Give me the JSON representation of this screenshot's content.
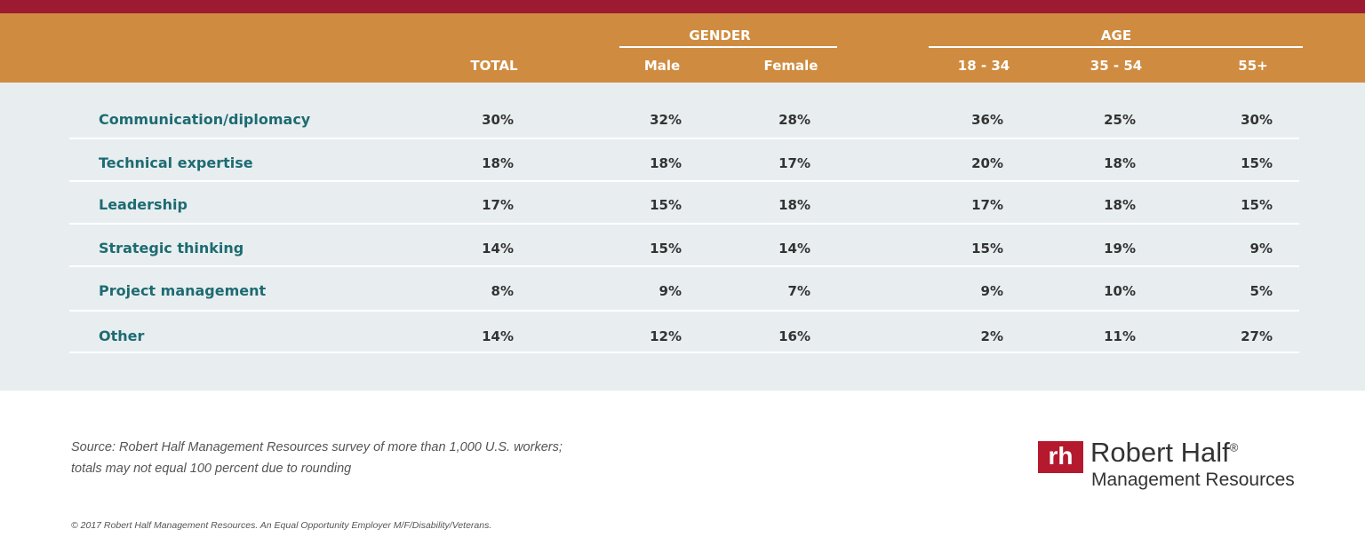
{
  "table": {
    "group_headers": [
      {
        "label": "GENDER"
      },
      {
        "label": "AGE"
      }
    ],
    "columns": [
      "TOTAL",
      "Male",
      "Female",
      "18 - 34",
      "35 - 54",
      "55+"
    ],
    "rows": [
      {
        "label": "Communication/diplomacy",
        "cells": [
          "30%",
          "32%",
          "28%",
          "36%",
          "25%",
          "30%"
        ]
      },
      {
        "label": "Technical expertise",
        "cells": [
          "18%",
          "18%",
          "17%",
          "20%",
          "18%",
          "15%"
        ]
      },
      {
        "label": "Leadership",
        "cells": [
          "17%",
          "15%",
          "18%",
          "17%",
          "18%",
          "15%"
        ]
      },
      {
        "label": "Strategic thinking",
        "cells": [
          "14%",
          "15%",
          "14%",
          "15%",
          "19%",
          "9%"
        ]
      },
      {
        "label": "Project management",
        "cells": [
          "8%",
          "9%",
          "7%",
          "9%",
          "10%",
          "5%"
        ]
      },
      {
        "label": "Other",
        "cells": [
          "14%",
          "12%",
          "16%",
          "2%",
          "11%",
          "27%"
        ]
      }
    ]
  },
  "footer": {
    "source": [
      "Source: Robert Half Management Resources survey of more than 1,000 U.S. workers;",
      "totals may not equal 100 percent due to rounding"
    ],
    "copyright": "© 2017 Robert Half Management Resources. An Equal Opportunity Employer M/F/Disability/Veterans."
  },
  "logo": {
    "mark": "rh",
    "name": "Robert Half",
    "registered": "®",
    "subtitle": "Management Resources"
  }
}
